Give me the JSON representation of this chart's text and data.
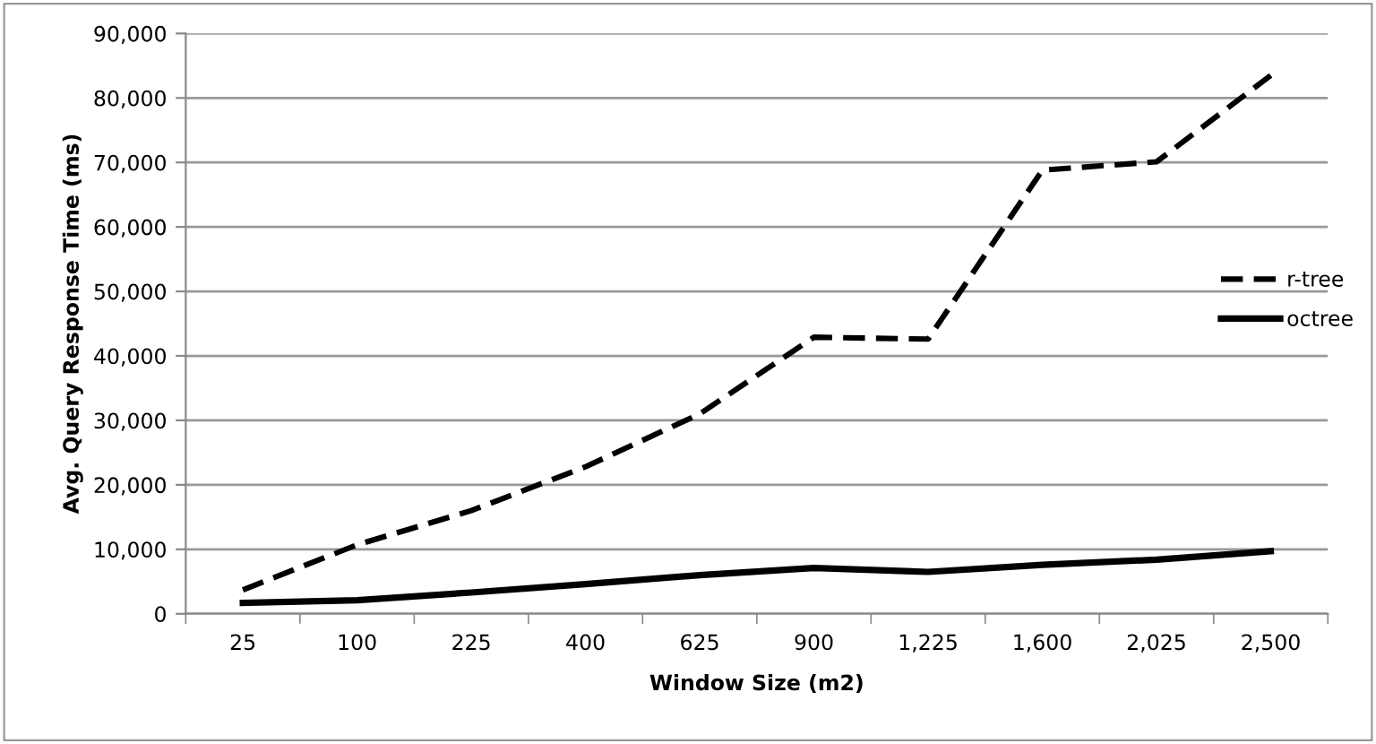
{
  "chart_data": {
    "type": "line",
    "xlabel": "Window Size (m2)",
    "ylabel": "Avg. Query Response Time (ms)",
    "categories": [
      "25",
      "100",
      "225",
      "400",
      "625",
      "900",
      "1,225",
      "1,600",
      "2,025",
      "2,500"
    ],
    "series": [
      {
        "name": "r-tree",
        "color": "#000000",
        "line_style": "dashed",
        "values": [
          3700,
          10700,
          16000,
          22800,
          31000,
          42900,
          42600,
          68800,
          70100,
          83500
        ]
      },
      {
        "name": "octree",
        "color": "#000000",
        "line_style": "solid",
        "values": [
          1700,
          2100,
          3300,
          4600,
          6000,
          7100,
          6500,
          7600,
          8400,
          9700
        ]
      }
    ],
    "ylim": [
      0,
      90000
    ],
    "yticks": [
      {
        "value": 0,
        "label": "0"
      },
      {
        "value": 10000,
        "label": "10,000"
      },
      {
        "value": 20000,
        "label": "20,000"
      },
      {
        "value": 30000,
        "label": "30,000"
      },
      {
        "value": 40000,
        "label": "40,000"
      },
      {
        "value": 50000,
        "label": "50,000"
      },
      {
        "value": 60000,
        "label": "60,000"
      },
      {
        "value": 70000,
        "label": "70,000"
      },
      {
        "value": 80000,
        "label": "80,000"
      },
      {
        "value": 90000,
        "label": "90,000"
      }
    ],
    "grid": "y",
    "legend": "right",
    "marker": "none"
  }
}
